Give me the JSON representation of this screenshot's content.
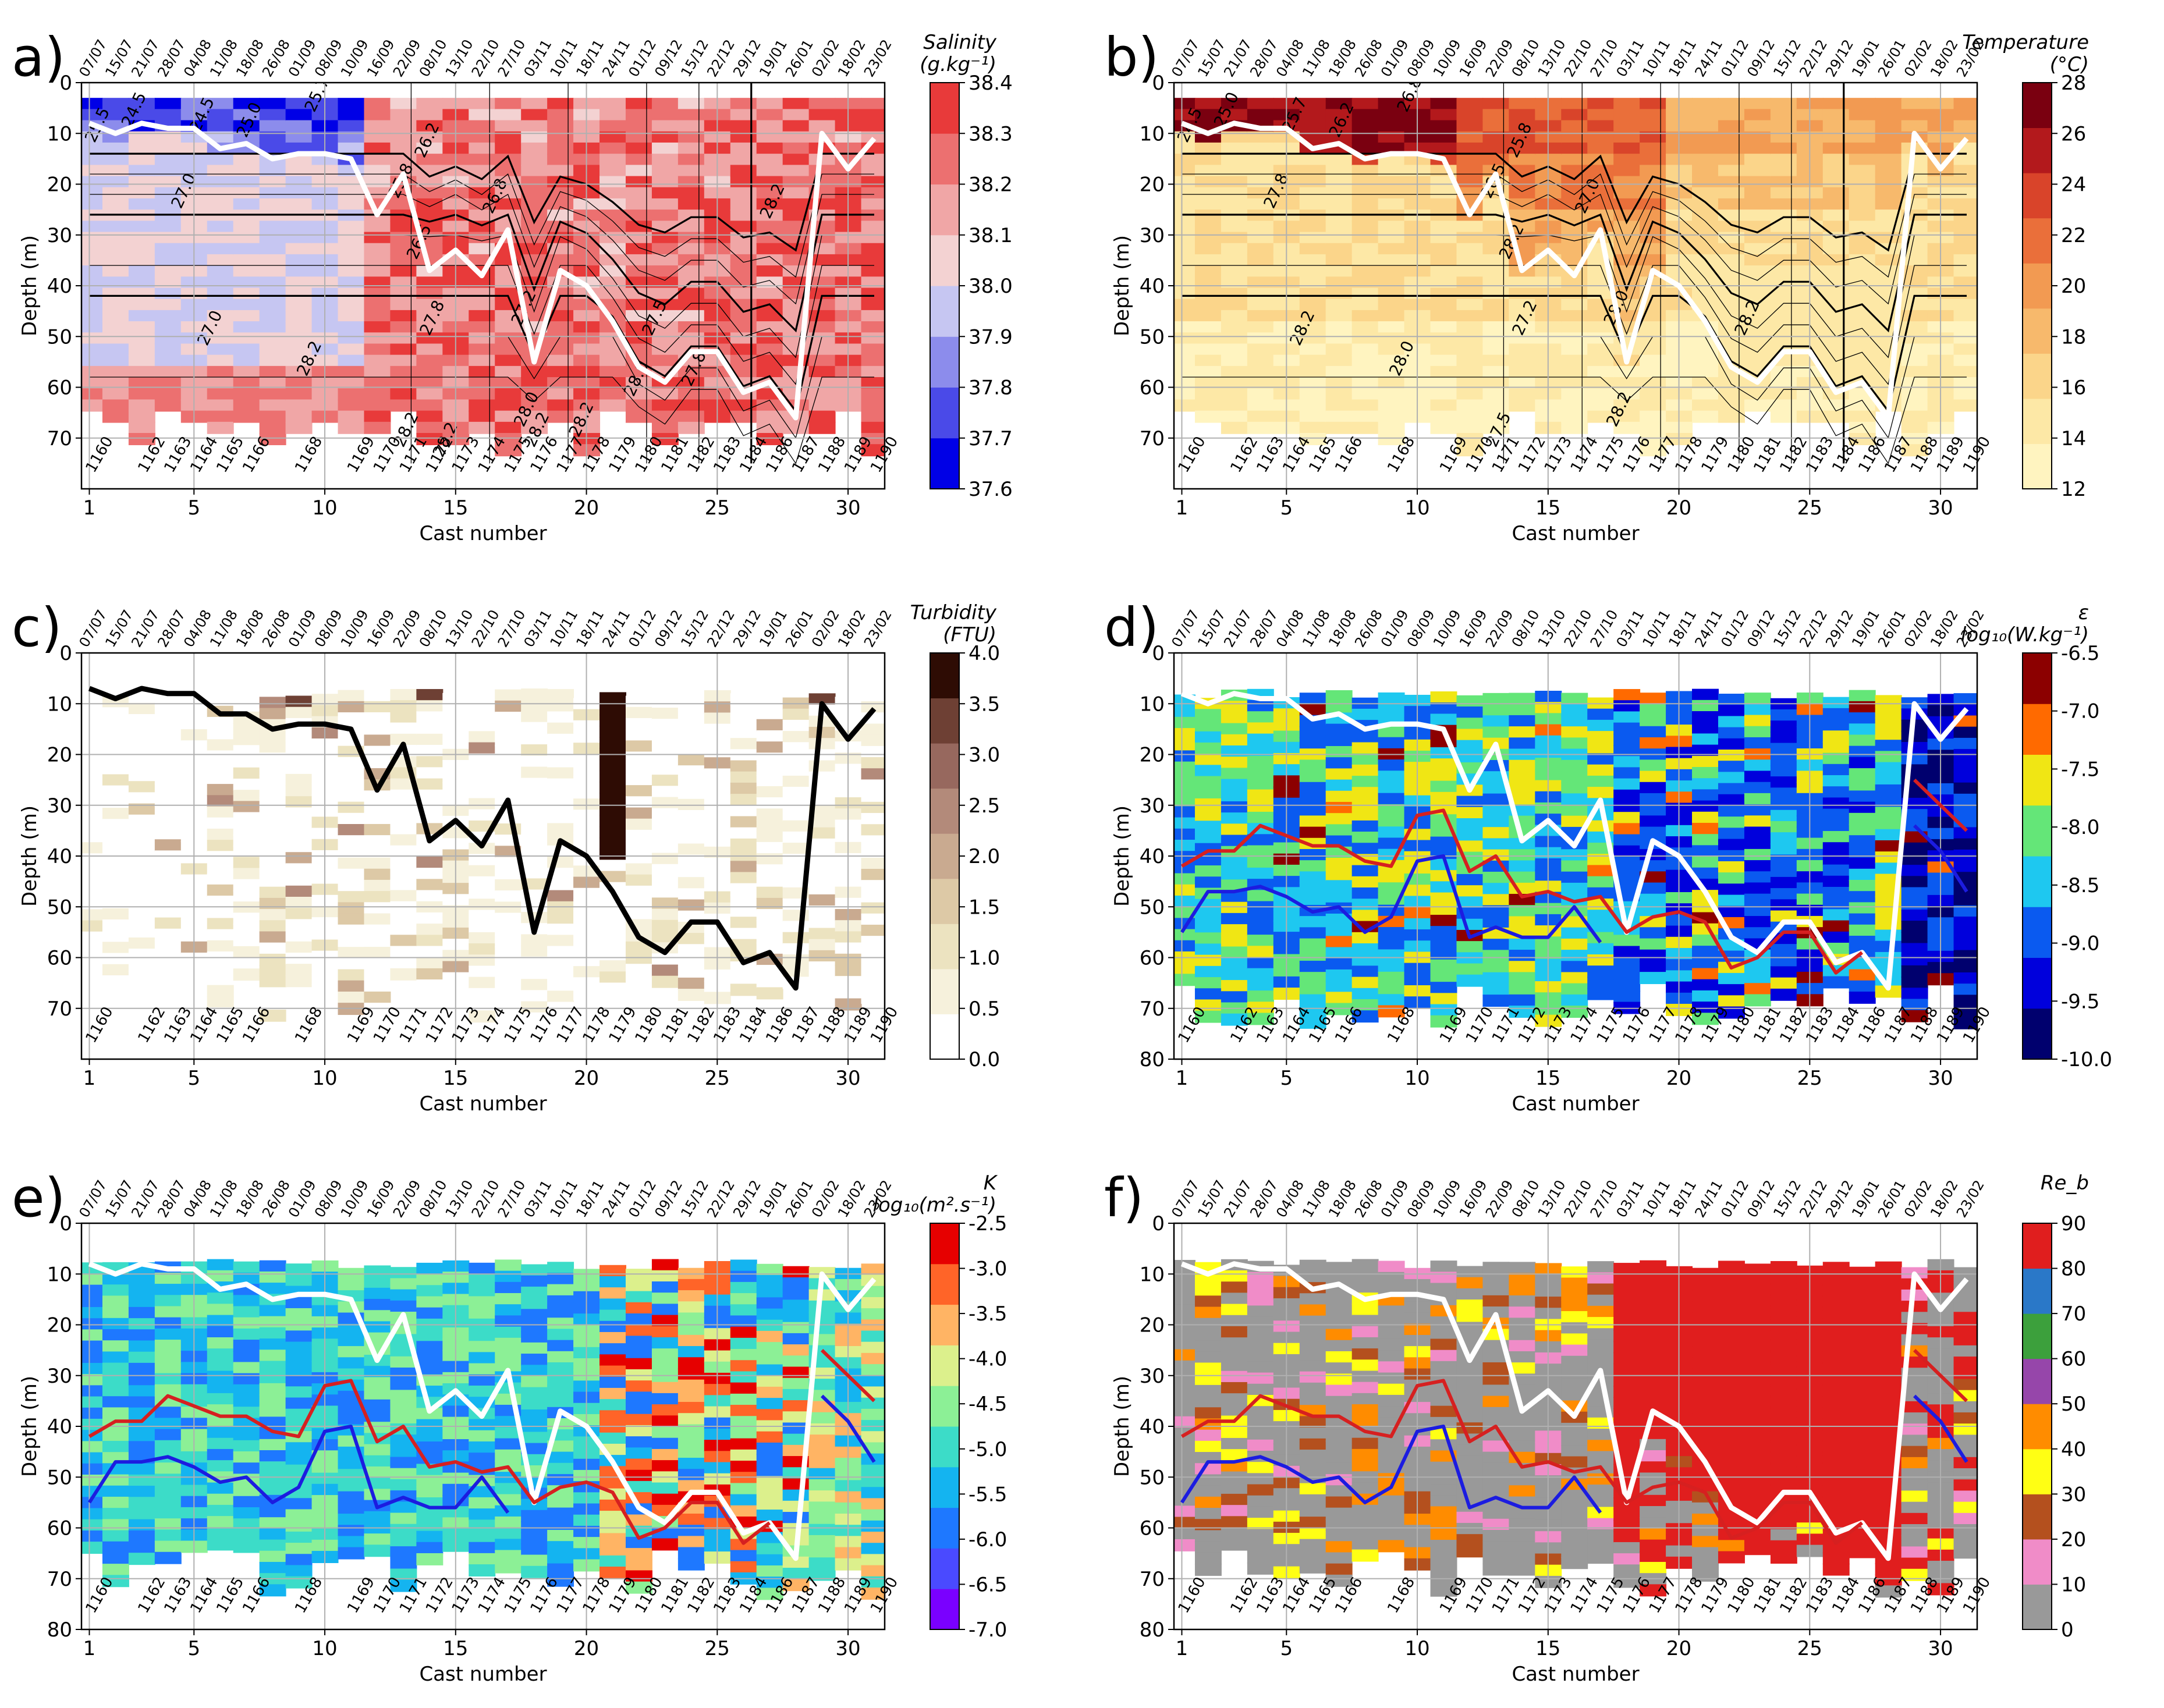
{
  "dates": [
    "07/07",
    "15/07",
    "21/07",
    "28/07",
    "04/08",
    "11/08",
    "18/08",
    "26/08",
    "01/09",
    "08/09",
    "10/09",
    "16/09",
    "22/09",
    "08/10",
    "13/10",
    "22/10",
    "27/10",
    "03/11",
    "10/11",
    "18/11",
    "24/11",
    "01/12",
    "09/12",
    "15/12",
    "22/12",
    "29/12",
    "19/01",
    "26/01",
    "02/02",
    "18/02",
    "23/02"
  ],
  "xlabel": "Cast number",
  "ylabel": "Depth (m)",
  "colors": {
    "mld_white": "#ffffff",
    "mld_black": "#000000",
    "red_line": "#d62020",
    "blue_line": "#1c1ce0",
    "grid": "#b0b0b0"
  },
  "chart_data": [
    {
      "id": "a",
      "type": "heatmap",
      "label": "a)",
      "cbar_title": [
        "Salinity",
        "(g.kg⁻¹)"
      ],
      "x_ticks": [
        1,
        5,
        10,
        15,
        20,
        25,
        30
      ],
      "y_ticks": [
        0,
        10,
        20,
        30,
        40,
        50,
        60,
        70
      ],
      "ylim": [
        80,
        0
      ],
      "cbar_ticks": [
        "38.4",
        "38.3",
        "38.2",
        "38.1",
        "38.0",
        "37.9",
        "37.8",
        "37.7",
        "37.6"
      ],
      "cbar_colors": [
        "#0000e6",
        "#4a4ae8",
        "#8c8cec",
        "#c6c6f2",
        "#f3d2d2",
        "#f0a6a6",
        "#ec7070",
        "#e83a3a"
      ],
      "casts": [
        "1160",
        "1162",
        "1163",
        "1164",
        "1165",
        "1166",
        "1168",
        "1169",
        "1170",
        "1171",
        "1172",
        "1173",
        "1174",
        "1175",
        "1176",
        "1177",
        "1178",
        "1179",
        "1180",
        "1181",
        "1182",
        "1183",
        "1184",
        "1186",
        "1187",
        "1188",
        "1189",
        "1190"
      ],
      "contour_labels": [
        "25.5",
        "24.5",
        "24.5",
        "25.0",
        "25.7",
        "26.2",
        "26.8",
        "25.8",
        "27.0",
        "27.0",
        "26.5",
        "27.8",
        "28.2",
        "28.2",
        "27.2",
        "28.0",
        "27.5",
        "28.0",
        "27.8",
        "28.2",
        "28.2",
        "28.2",
        "28.2"
      ],
      "mld": [
        8,
        10,
        8,
        9,
        9,
        13,
        12,
        15,
        14,
        14,
        15,
        26,
        18,
        37,
        33,
        38,
        29,
        55,
        37,
        40,
        47,
        56,
        59,
        53,
        53,
        61,
        59,
        66,
        10,
        17,
        11
      ],
      "mld_color": "white"
    },
    {
      "id": "b",
      "type": "heatmap",
      "label": "b)",
      "cbar_title": [
        "Temperature",
        "(°C)"
      ],
      "x_ticks": [
        1,
        5,
        10,
        15,
        20,
        25,
        30
      ],
      "y_ticks": [
        0,
        10,
        20,
        30,
        40,
        50,
        60,
        70
      ],
      "ylim": [
        80,
        0
      ],
      "cbar_ticks": [
        "28",
        "26",
        "24",
        "22",
        "20",
        "18",
        "16",
        "14",
        "12"
      ],
      "cbar_colors": [
        "#fff4c0",
        "#fde8a6",
        "#fbd58a",
        "#f7b96c",
        "#f29a52",
        "#ea6f3a",
        "#d9442a",
        "#b3191c",
        "#7a0010"
      ],
      "casts": [
        "1160",
        "1162",
        "1163",
        "1164",
        "1165",
        "1166",
        "1168",
        "1169",
        "1170",
        "1171",
        "1172",
        "1173",
        "1174",
        "1175",
        "1176",
        "1177",
        "1178",
        "1179",
        "1180",
        "1181",
        "1182",
        "1183",
        "1184",
        "1186",
        "1187",
        "1188",
        "1189",
        "1190"
      ],
      "contour_labels": [
        "24.5",
        "25.0",
        "25.7",
        "26.2",
        "26.8",
        "25.8",
        "27.0",
        "26.5",
        "27.8",
        "28.2",
        "28.2",
        "27.2",
        "28.0",
        "27.5",
        "28.0",
        "28.2",
        "28.2"
      ],
      "mld": [
        8,
        10,
        8,
        9,
        9,
        13,
        12,
        15,
        14,
        14,
        15,
        26,
        18,
        37,
        33,
        38,
        29,
        55,
        37,
        40,
        47,
        56,
        59,
        53,
        53,
        61,
        59,
        66,
        10,
        17,
        11
      ],
      "mld_color": "white"
    },
    {
      "id": "c",
      "type": "heatmap",
      "label": "c)",
      "cbar_title": [
        "Turbidity",
        "(FTU)"
      ],
      "x_ticks": [
        1,
        5,
        10,
        15,
        20,
        25,
        30
      ],
      "y_ticks": [
        0,
        10,
        20,
        30,
        40,
        50,
        60,
        70
      ],
      "ylim": [
        80,
        0
      ],
      "cbar_ticks": [
        "4.0",
        "3.5",
        "3.0",
        "2.5",
        "2.0",
        "1.5",
        "1.0",
        "0.5",
        "0.0"
      ],
      "cbar_colors": [
        "#ffffff",
        "#f6f1dc",
        "#ece3c0",
        "#ddc9a6",
        "#c9aa90",
        "#b38a7a",
        "#97685e",
        "#6e4034",
        "#2e0c04"
      ],
      "casts": [
        "1160",
        "1162",
        "1163",
        "1164",
        "1165",
        "1166",
        "1168",
        "1169",
        "1170",
        "1171",
        "1172",
        "1173",
        "1174",
        "1175",
        "1176",
        "1177",
        "1178",
        "1179",
        "1180",
        "1181",
        "1182",
        "1183",
        "1184",
        "1186",
        "1187",
        "1188",
        "1189",
        "1190"
      ],
      "mld": [
        7,
        9,
        7,
        8,
        8,
        12,
        12,
        15,
        14,
        14,
        15,
        27,
        18,
        37,
        33,
        38,
        29,
        55,
        37,
        40,
        47,
        56,
        59,
        53,
        53,
        61,
        59,
        66,
        10,
        17,
        11
      ],
      "mld_color": "black"
    },
    {
      "id": "d",
      "type": "heatmap",
      "label": "d)",
      "cbar_title": [
        "ε",
        "log₁₀(W.kg⁻¹)"
      ],
      "x_ticks": [
        1,
        5,
        10,
        15,
        20,
        25,
        30
      ],
      "y_ticks": [
        0,
        10,
        20,
        30,
        40,
        50,
        60,
        70,
        80
      ],
      "ylim": [
        80,
        0
      ],
      "cbar_ticks": [
        "-6.5",
        "-7.0",
        "-7.5",
        "-8.0",
        "-8.5",
        "-9.0",
        "-9.5",
        "-10.0"
      ],
      "cbar_colors": [
        "#00006e",
        "#0000dc",
        "#0a5af0",
        "#1ec8f0",
        "#64e678",
        "#f0e614",
        "#ff6a00",
        "#8c0000"
      ],
      "casts": [
        "1160",
        "1162",
        "1163",
        "1164",
        "1165",
        "1166",
        "1168",
        "1169",
        "1170",
        "1171",
        "1172",
        "1173",
        "1174",
        "1175",
        "1176",
        "1177",
        "1178",
        "1179",
        "1180",
        "1181",
        "1182",
        "1183",
        "1184",
        "1186",
        "1187",
        "1188",
        "1189",
        "1190"
      ],
      "mld": [
        8,
        10,
        8,
        9,
        9,
        13,
        12,
        15,
        14,
        14,
        15,
        27,
        18,
        37,
        33,
        38,
        29,
        55,
        37,
        40,
        47,
        56,
        59,
        53,
        53,
        61,
        59,
        66,
        10,
        17,
        11
      ],
      "mld_color": "white",
      "red": [
        42,
        39,
        39,
        34,
        36,
        38,
        38,
        41,
        42,
        32,
        31,
        43,
        40,
        48,
        47,
        49,
        48,
        55,
        52,
        51,
        53,
        62,
        60,
        55,
        55,
        63,
        59,
        null,
        25,
        30,
        35
      ],
      "blue": [
        55,
        47,
        47,
        46,
        48,
        51,
        50,
        55,
        52,
        41,
        40,
        56,
        54,
        56,
        56,
        50,
        57,
        null,
        null,
        null,
        null,
        null,
        null,
        null,
        null,
        null,
        null,
        null,
        34,
        39,
        47
      ]
    },
    {
      "id": "e",
      "type": "heatmap",
      "label": "e)",
      "cbar_title": [
        "K",
        "log₁₀(m².s⁻¹)"
      ],
      "x_ticks": [
        1,
        5,
        10,
        15,
        20,
        25,
        30
      ],
      "y_ticks": [
        0,
        10,
        20,
        30,
        40,
        50,
        60,
        70,
        80
      ],
      "ylim": [
        80,
        0
      ],
      "cbar_ticks": [
        "-2.5",
        "-3.0",
        "-3.5",
        "-4.0",
        "-4.5",
        "-5.0",
        "-5.5",
        "-6.0",
        "-6.5",
        "-7.0"
      ],
      "cbar_colors": [
        "#7a00ff",
        "#4a4aff",
        "#1e78ff",
        "#14b4f0",
        "#3cdcc8",
        "#8cf096",
        "#dcf08c",
        "#ffb464",
        "#ff6428",
        "#e60000"
      ],
      "casts": [
        "1160",
        "1162",
        "1163",
        "1164",
        "1165",
        "1166",
        "1168",
        "1169",
        "1170",
        "1171",
        "1172",
        "1173",
        "1174",
        "1175",
        "1176",
        "1177",
        "1178",
        "1179",
        "1180",
        "1181",
        "1182",
        "1183",
        "1184",
        "1186",
        "1187",
        "1188",
        "1189",
        "1190"
      ],
      "mld": [
        8,
        10,
        8,
        9,
        9,
        13,
        12,
        15,
        14,
        14,
        15,
        27,
        18,
        37,
        33,
        38,
        29,
        55,
        37,
        40,
        47,
        56,
        59,
        53,
        53,
        61,
        59,
        66,
        10,
        17,
        11
      ],
      "mld_color": "white",
      "red": [
        42,
        39,
        39,
        34,
        36,
        38,
        38,
        41,
        42,
        32,
        31,
        43,
        40,
        48,
        47,
        49,
        48,
        55,
        52,
        51,
        53,
        62,
        60,
        55,
        55,
        63,
        59,
        null,
        25,
        30,
        35
      ],
      "blue": [
        55,
        47,
        47,
        46,
        48,
        51,
        50,
        55,
        52,
        41,
        40,
        56,
        54,
        56,
        56,
        50,
        57,
        null,
        null,
        null,
        null,
        null,
        null,
        null,
        null,
        null,
        null,
        null,
        34,
        39,
        47
      ]
    },
    {
      "id": "f",
      "type": "heatmap",
      "label": "f)",
      "cbar_title": [
        "Re_b"
      ],
      "x_ticks": [
        1,
        5,
        10,
        15,
        20,
        25,
        30
      ],
      "y_ticks": [
        0,
        10,
        20,
        30,
        40,
        50,
        60,
        70,
        80
      ],
      "ylim": [
        80,
        0
      ],
      "cbar_ticks": [
        "90",
        "80",
        "70",
        "60",
        "50",
        "40",
        "30",
        "20",
        "10",
        "0"
      ],
      "cbar_colors": [
        "#999999",
        "#f08cc8",
        "#b4501e",
        "#ffff14",
        "#ff8c00",
        "#9646aa",
        "#3ca03c",
        "#2a78c8",
        "#e01e1e"
      ],
      "casts": [
        "1160",
        "1162",
        "1163",
        "1164",
        "1165",
        "1166",
        "1168",
        "1169",
        "1170",
        "1171",
        "1172",
        "1173",
        "1174",
        "1175",
        "1176",
        "1177",
        "1178",
        "1179",
        "1180",
        "1181",
        "1182",
        "1183",
        "1184",
        "1186",
        "1187",
        "1188",
        "1189",
        "1190"
      ],
      "mld": [
        8,
        10,
        8,
        9,
        9,
        13,
        12,
        15,
        14,
        14,
        15,
        27,
        18,
        37,
        33,
        38,
        29,
        55,
        37,
        40,
        47,
        56,
        59,
        53,
        53,
        61,
        59,
        66,
        10,
        17,
        11
      ],
      "mld_color": "white",
      "red": [
        42,
        39,
        39,
        34,
        36,
        38,
        38,
        41,
        42,
        32,
        31,
        43,
        40,
        48,
        47,
        49,
        48,
        55,
        52,
        51,
        53,
        62,
        60,
        55,
        55,
        63,
        59,
        null,
        25,
        30,
        35
      ],
      "blue": [
        55,
        47,
        47,
        46,
        48,
        51,
        50,
        55,
        52,
        41,
        40,
        56,
        54,
        56,
        56,
        50,
        57,
        null,
        null,
        null,
        null,
        null,
        null,
        null,
        null,
        null,
        null,
        null,
        34,
        39,
        47
      ]
    }
  ]
}
